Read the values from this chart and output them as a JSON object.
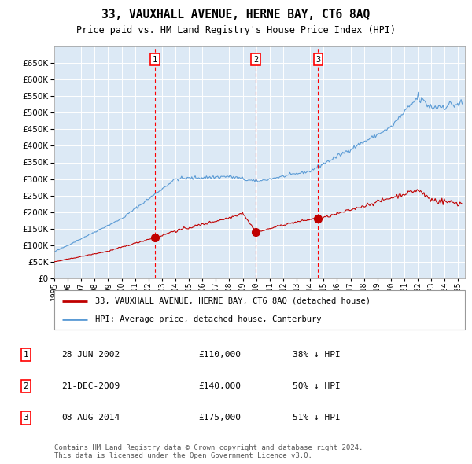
{
  "title": "33, VAUXHALL AVENUE, HERNE BAY, CT6 8AQ",
  "subtitle": "Price paid vs. HM Land Registry's House Price Index (HPI)",
  "background_color": "#ffffff",
  "plot_bg_color": "#dce9f5",
  "red_line_label": "33, VAUXHALL AVENUE, HERNE BAY, CT6 8AQ (detached house)",
  "blue_line_label": "HPI: Average price, detached house, Canterbury",
  "footer": "Contains HM Land Registry data © Crown copyright and database right 2024.\nThis data is licensed under the Open Government Licence v3.0.",
  "transactions": [
    {
      "num": 1,
      "date": "28-JUN-2002",
      "price": 110000,
      "pct": "38%",
      "x_year": 2002.49
    },
    {
      "num": 2,
      "date": "21-DEC-2009",
      "price": 140000,
      "pct": "50%",
      "x_year": 2009.97
    },
    {
      "num": 3,
      "date": "08-AUG-2014",
      "price": 175000,
      "pct": "51%",
      "x_year": 2014.6
    }
  ],
  "ylim": [
    0,
    700000
  ],
  "yticks": [
    0,
    50000,
    100000,
    150000,
    200000,
    250000,
    300000,
    350000,
    400000,
    450000,
    500000,
    550000,
    600000,
    650000
  ],
  "xlim_start": 1995.0,
  "xlim_end": 2025.5
}
